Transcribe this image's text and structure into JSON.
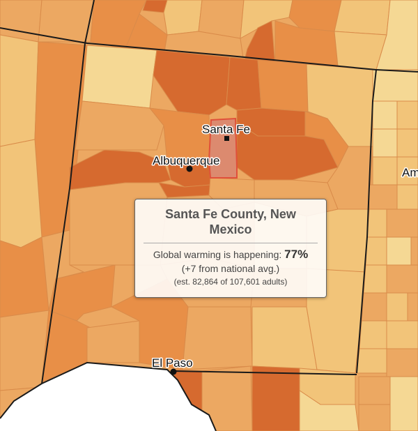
{
  "colors": {
    "pale": "#f5d894",
    "light": "#f2c479",
    "medium": "#eca862",
    "orange": "#e88f47",
    "dark": "#d66a2f",
    "highlight": "#dc8a6f",
    "highlight_border": "#e0503a",
    "background": "#ffffff"
  },
  "cities": {
    "santa_fe": "Santa Fe",
    "albuquerque": "Albuquerque",
    "el_paso": "El Paso",
    "amarillo_partial": "Am"
  },
  "tooltip": {
    "title": "Santa Fe County, New Mexico",
    "line1_prefix": "Global warming is happening:",
    "value": "77%",
    "line2": "(+7 from national avg.)",
    "line3": "(est. 82,864 of 107,601 adults)"
  }
}
